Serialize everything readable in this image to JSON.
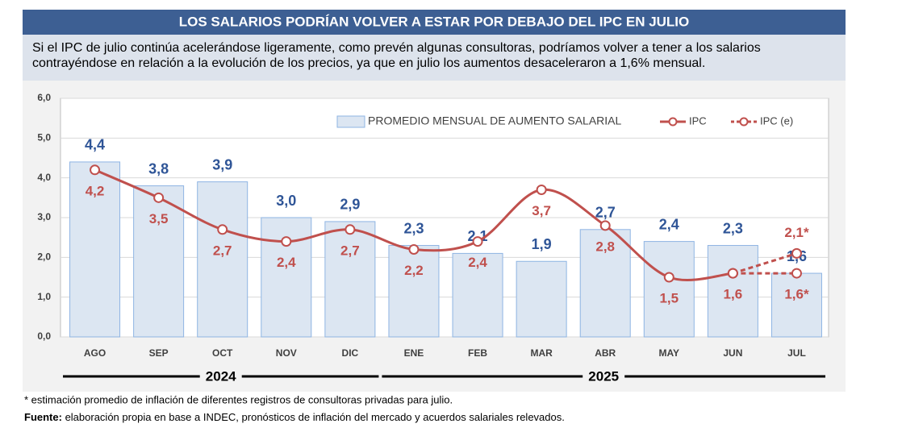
{
  "chart_data": {
    "type": "bar-line",
    "title": "LOS SALARIOS PODRÍAN VOLVER A ESTAR POR DEBAJO DEL IPC EN JULIO",
    "subtitle": "Si el IPC de julio continúa acelerándose ligeramente, como prevén algunas consultoras, podríamos volver a tener a los salarios contrayéndose en relación a la evolución de los precios, ya que en julio los aumentos desaceleraron a 1,6% mensual.",
    "categories": [
      "AGO",
      "SEP",
      "OCT",
      "NOV",
      "DIC",
      "ENE",
      "FEB",
      "MAR",
      "ABR",
      "MAY",
      "JUN",
      "JUL"
    ],
    "periods": [
      {
        "label": "2024",
        "from": 0,
        "to": 4
      },
      {
        "label": "2025",
        "from": 5,
        "to": 11
      }
    ],
    "ylim": [
      0,
      6
    ],
    "yticks": [
      {
        "value": 0,
        "label": "0,0"
      },
      {
        "value": 1,
        "label": "1,0"
      },
      {
        "value": 2,
        "label": "2,0"
      },
      {
        "value": 3,
        "label": "3,0"
      },
      {
        "value": 4,
        "label": "4,0"
      },
      {
        "value": 5,
        "label": "5,0"
      },
      {
        "value": 6,
        "label": "6,0"
      }
    ],
    "grid": true,
    "series": [
      {
        "name": "PROMEDIO MENSUAL DE AUMENTO SALARIAL",
        "kind": "bar",
        "color": "#dce6f2",
        "edge": "#8eb4e3",
        "label_color": "#2f5597",
        "values": [
          4.4,
          3.8,
          3.9,
          3.0,
          2.9,
          2.3,
          2.1,
          1.9,
          2.7,
          2.4,
          2.3,
          1.6
        ],
        "value_labels": [
          "4,4",
          "3,8",
          "3,9",
          "3,0",
          "2,9",
          "2,3",
          "2,1",
          "1,9",
          "2,7",
          "2,4",
          "2,3",
          "1,6"
        ]
      },
      {
        "name": "IPC",
        "kind": "line",
        "color": "#c0504d",
        "values": [
          4.2,
          3.5,
          2.7,
          2.4,
          2.7,
          2.2,
          2.4,
          3.7,
          2.8,
          1.5,
          1.6,
          null
        ],
        "value_labels": [
          "4,2",
          "3,5",
          "2,7",
          "2,4",
          "2,7",
          "2,2",
          "2,4",
          "3,7",
          "2,8",
          "1,5",
          "1,6",
          null
        ]
      },
      {
        "name": "IPC (e)",
        "kind": "dashed",
        "color": "#c0504d",
        "values": [
          null,
          null,
          null,
          null,
          null,
          null,
          null,
          null,
          null,
          null,
          1.6,
          2.1
        ],
        "value_labels": [
          null,
          null,
          null,
          null,
          null,
          null,
          null,
          null,
          null,
          null,
          null,
          "2,1*"
        ]
      },
      {
        "kind": "dashed",
        "color": "#c0504d",
        "values": [
          null,
          null,
          null,
          null,
          null,
          null,
          null,
          null,
          null,
          null,
          1.6,
          1.6
        ],
        "value_labels": [
          null,
          null,
          null,
          null,
          null,
          null,
          null,
          null,
          null,
          null,
          null,
          "1,6*"
        ]
      }
    ],
    "notes": [
      {
        "text": "* estimación promedio de inflación de diferentes registros de consultoras privadas para julio."
      },
      {
        "label": "Fuente:",
        "text": " elaboración propia en base a INDEC, pronósticos de inflación del mercado y acuerdos salariales relevados."
      }
    ]
  }
}
